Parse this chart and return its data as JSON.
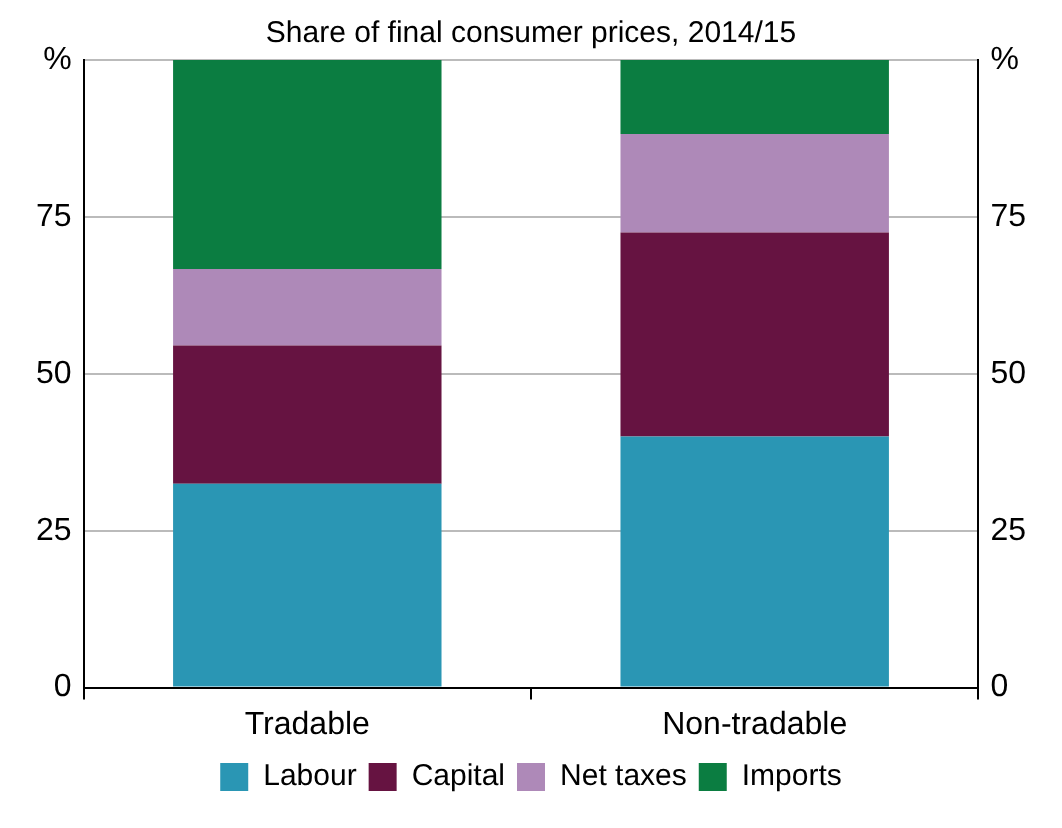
{
  "chart_data": {
    "type": "bar",
    "stacked": true,
    "title": "Share of final consumer prices, 2014/15",
    "categories": [
      "Tradable",
      "Non-tradable"
    ],
    "series": [
      {
        "name": "Labour",
        "color": "#2a96b4",
        "values": [
          32.5,
          40
        ]
      },
      {
        "name": "Capital",
        "color": "#661341",
        "values": [
          22,
          32.5
        ]
      },
      {
        "name": "Net taxes",
        "color": "#ae89b8",
        "values": [
          12.2,
          15.7
        ]
      },
      {
        "name": "Imports",
        "color": "#0b7d41",
        "values": [
          33.3,
          11.8
        ]
      }
    ],
    "ylim": [
      0,
      100
    ],
    "yticks": [
      0,
      25,
      50,
      75,
      {
        "value": 100,
        "label": "%"
      }
    ],
    "y2lim": [
      0,
      100
    ],
    "y2ticks": [
      0,
      25,
      50,
      75,
      {
        "value": 100,
        "label": "%"
      }
    ],
    "grid": "y",
    "legend": "bottom"
  }
}
